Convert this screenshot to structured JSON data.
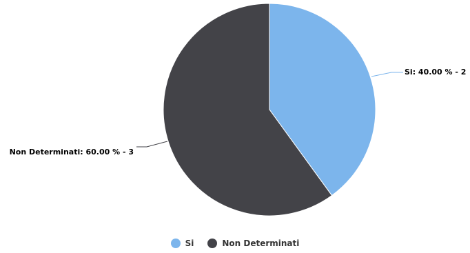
{
  "chart_data": {
    "type": "pie",
    "title": "",
    "slices": [
      {
        "name": "Si",
        "percent": 40.0,
        "count": 2,
        "color": "#7cb5ec",
        "label": "Si: 40.00 % - 2"
      },
      {
        "name": "Non Determinati",
        "percent": 60.0,
        "count": 3,
        "color": "#434348",
        "label": "Non Determinati: 60.00 % - 3"
      }
    ],
    "start_angle_deg": 0,
    "direction": "clockwise",
    "legend_position": "bottom-center"
  },
  "legend": {
    "items": [
      {
        "label": "Si",
        "color": "#7cb5ec"
      },
      {
        "label": "Non Determinati",
        "color": "#434348"
      }
    ]
  }
}
